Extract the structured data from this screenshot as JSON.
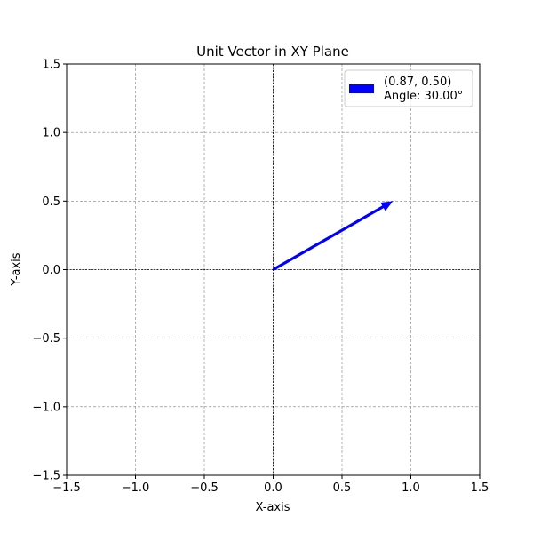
{
  "chart_data": {
    "type": "vector",
    "title": "Unit Vector in XY Plane",
    "xlabel": "X-axis",
    "ylabel": "Y-axis",
    "xlim": [
      -1.5,
      1.5
    ],
    "ylim": [
      -1.5,
      1.5
    ],
    "xticks": [
      -1.5,
      -1.0,
      -0.5,
      0.0,
      0.5,
      1.0,
      1.5
    ],
    "yticks": [
      -1.5,
      -1.0,
      -0.5,
      0.0,
      0.5,
      1.0,
      1.5
    ],
    "xtick_labels": [
      "−1.5",
      "−1.0",
      "−0.5",
      "0.0",
      "0.5",
      "1.0",
      "1.5"
    ],
    "ytick_labels": [
      "−1.5",
      "−1.0",
      "−0.5",
      "0.0",
      "0.5",
      "1.0",
      "1.5"
    ],
    "grid": true,
    "legend_position": "top-right",
    "vectors": [
      {
        "origin": [
          0,
          0
        ],
        "components": [
          0.87,
          0.5
        ],
        "angle_deg": 30.0,
        "color": "#0000ff",
        "legend_line1": "(0.87, 0.50)",
        "legend_line2": "Angle: 30.00°"
      }
    ],
    "reference_lines": {
      "x0": true,
      "y0": true
    }
  }
}
